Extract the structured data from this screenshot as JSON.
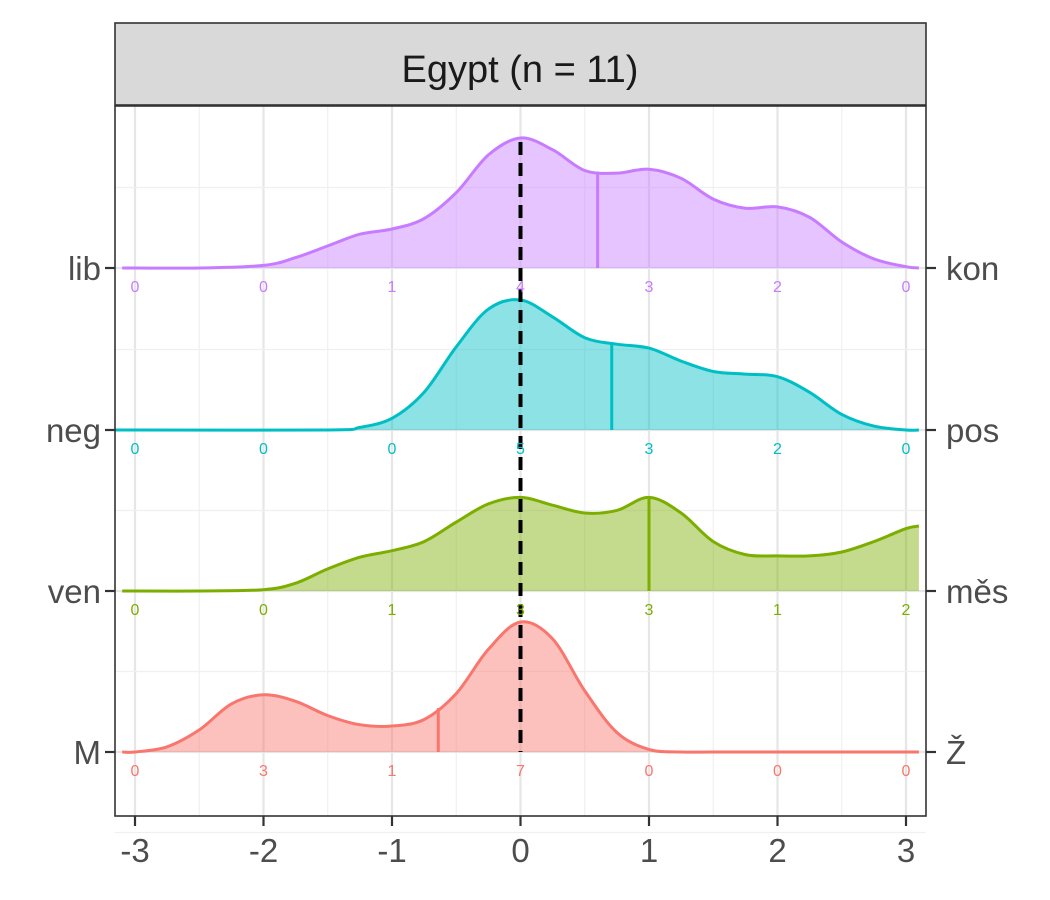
{
  "chart_data": {
    "type": "ridgeline-density",
    "title": "Egypt (n = 11)",
    "xlabel": "",
    "ylabel": "",
    "xlim": [
      -3.1,
      3.1
    ],
    "x_ticks": [
      -3,
      -2,
      -1,
      0,
      1,
      2,
      3
    ],
    "x_tick_labels": [
      "-3",
      "-2",
      "-1",
      "0",
      "1",
      "2",
      "3"
    ],
    "reference_line": {
      "x": 0,
      "style": "dashed",
      "color": "#000000"
    },
    "grid": true,
    "count_positions": [
      -3,
      -2,
      -1,
      0,
      1,
      2,
      3
    ],
    "series": [
      {
        "left_label": "M",
        "right_label": "Ž",
        "color": "#F8766D",
        "mean_x": -0.64,
        "counts": [
          0,
          3,
          1,
          7,
          0,
          0,
          0
        ],
        "density_x": [
          -3.0,
          -2.75,
          -2.5,
          -2.25,
          -2.0,
          -1.75,
          -1.5,
          -1.25,
          -1.0,
          -0.75,
          -0.5,
          -0.25,
          0.0,
          0.25,
          0.5,
          0.75,
          1.0,
          1.25,
          1.5,
          2.0,
          2.5,
          3.0
        ],
        "density_y": [
          0.0,
          0.04,
          0.17,
          0.37,
          0.44,
          0.39,
          0.28,
          0.21,
          0.2,
          0.25,
          0.45,
          0.79,
          1.0,
          0.87,
          0.47,
          0.15,
          0.02,
          0.0,
          0.0,
          0.0,
          0.0,
          0.0
        ]
      },
      {
        "left_label": "ven",
        "right_label": "měs",
        "color": "#7CAE00",
        "mean_x": 1.0,
        "counts": [
          0,
          0,
          1,
          3,
          3,
          1,
          2
        ],
        "density_x": [
          -3.0,
          -2.5,
          -2.0,
          -1.75,
          -1.5,
          -1.25,
          -1.0,
          -0.75,
          -0.5,
          -0.25,
          0.0,
          0.25,
          0.5,
          0.75,
          1.0,
          1.25,
          1.5,
          1.75,
          2.0,
          2.25,
          2.5,
          2.75,
          3.0,
          3.1
        ],
        "density_y": [
          0.0,
          0.0,
          0.01,
          0.06,
          0.17,
          0.26,
          0.31,
          0.38,
          0.53,
          0.67,
          0.72,
          0.66,
          0.6,
          0.62,
          0.72,
          0.6,
          0.38,
          0.28,
          0.27,
          0.27,
          0.3,
          0.38,
          0.48,
          0.5
        ]
      },
      {
        "left_label": "neg",
        "right_label": "pos",
        "color": "#00BFC4",
        "mean_x": 0.71,
        "counts": [
          0,
          0,
          0,
          5,
          3,
          2,
          0
        ],
        "density_x": [
          -3.0,
          -1.5,
          -1.25,
          -1.0,
          -0.75,
          -0.5,
          -0.25,
          0.0,
          0.25,
          0.5,
          0.75,
          1.0,
          1.25,
          1.5,
          1.75,
          2.0,
          2.25,
          2.5,
          2.75,
          3.0
        ],
        "density_y": [
          0.0,
          0.0,
          0.02,
          0.09,
          0.29,
          0.64,
          0.93,
          1.0,
          0.87,
          0.71,
          0.66,
          0.63,
          0.53,
          0.45,
          0.43,
          0.41,
          0.29,
          0.12,
          0.03,
          0.0
        ]
      },
      {
        "left_label": "lib",
        "right_label": "kon",
        "color": "#C77CFF",
        "mean_x": 0.6,
        "counts": [
          0,
          0,
          1,
          4,
          3,
          2,
          0
        ],
        "density_x": [
          -3.0,
          -2.5,
          -2.0,
          -1.75,
          -1.5,
          -1.25,
          -1.0,
          -0.75,
          -0.5,
          -0.25,
          0.0,
          0.25,
          0.5,
          0.75,
          1.0,
          1.25,
          1.5,
          1.75,
          2.0,
          2.25,
          2.5,
          2.75,
          3.0
        ],
        "density_y": [
          0.0,
          0.0,
          0.02,
          0.08,
          0.17,
          0.26,
          0.3,
          0.38,
          0.58,
          0.87,
          1.0,
          0.91,
          0.75,
          0.73,
          0.76,
          0.69,
          0.53,
          0.46,
          0.47,
          0.39,
          0.2,
          0.07,
          0.01
        ]
      }
    ]
  }
}
